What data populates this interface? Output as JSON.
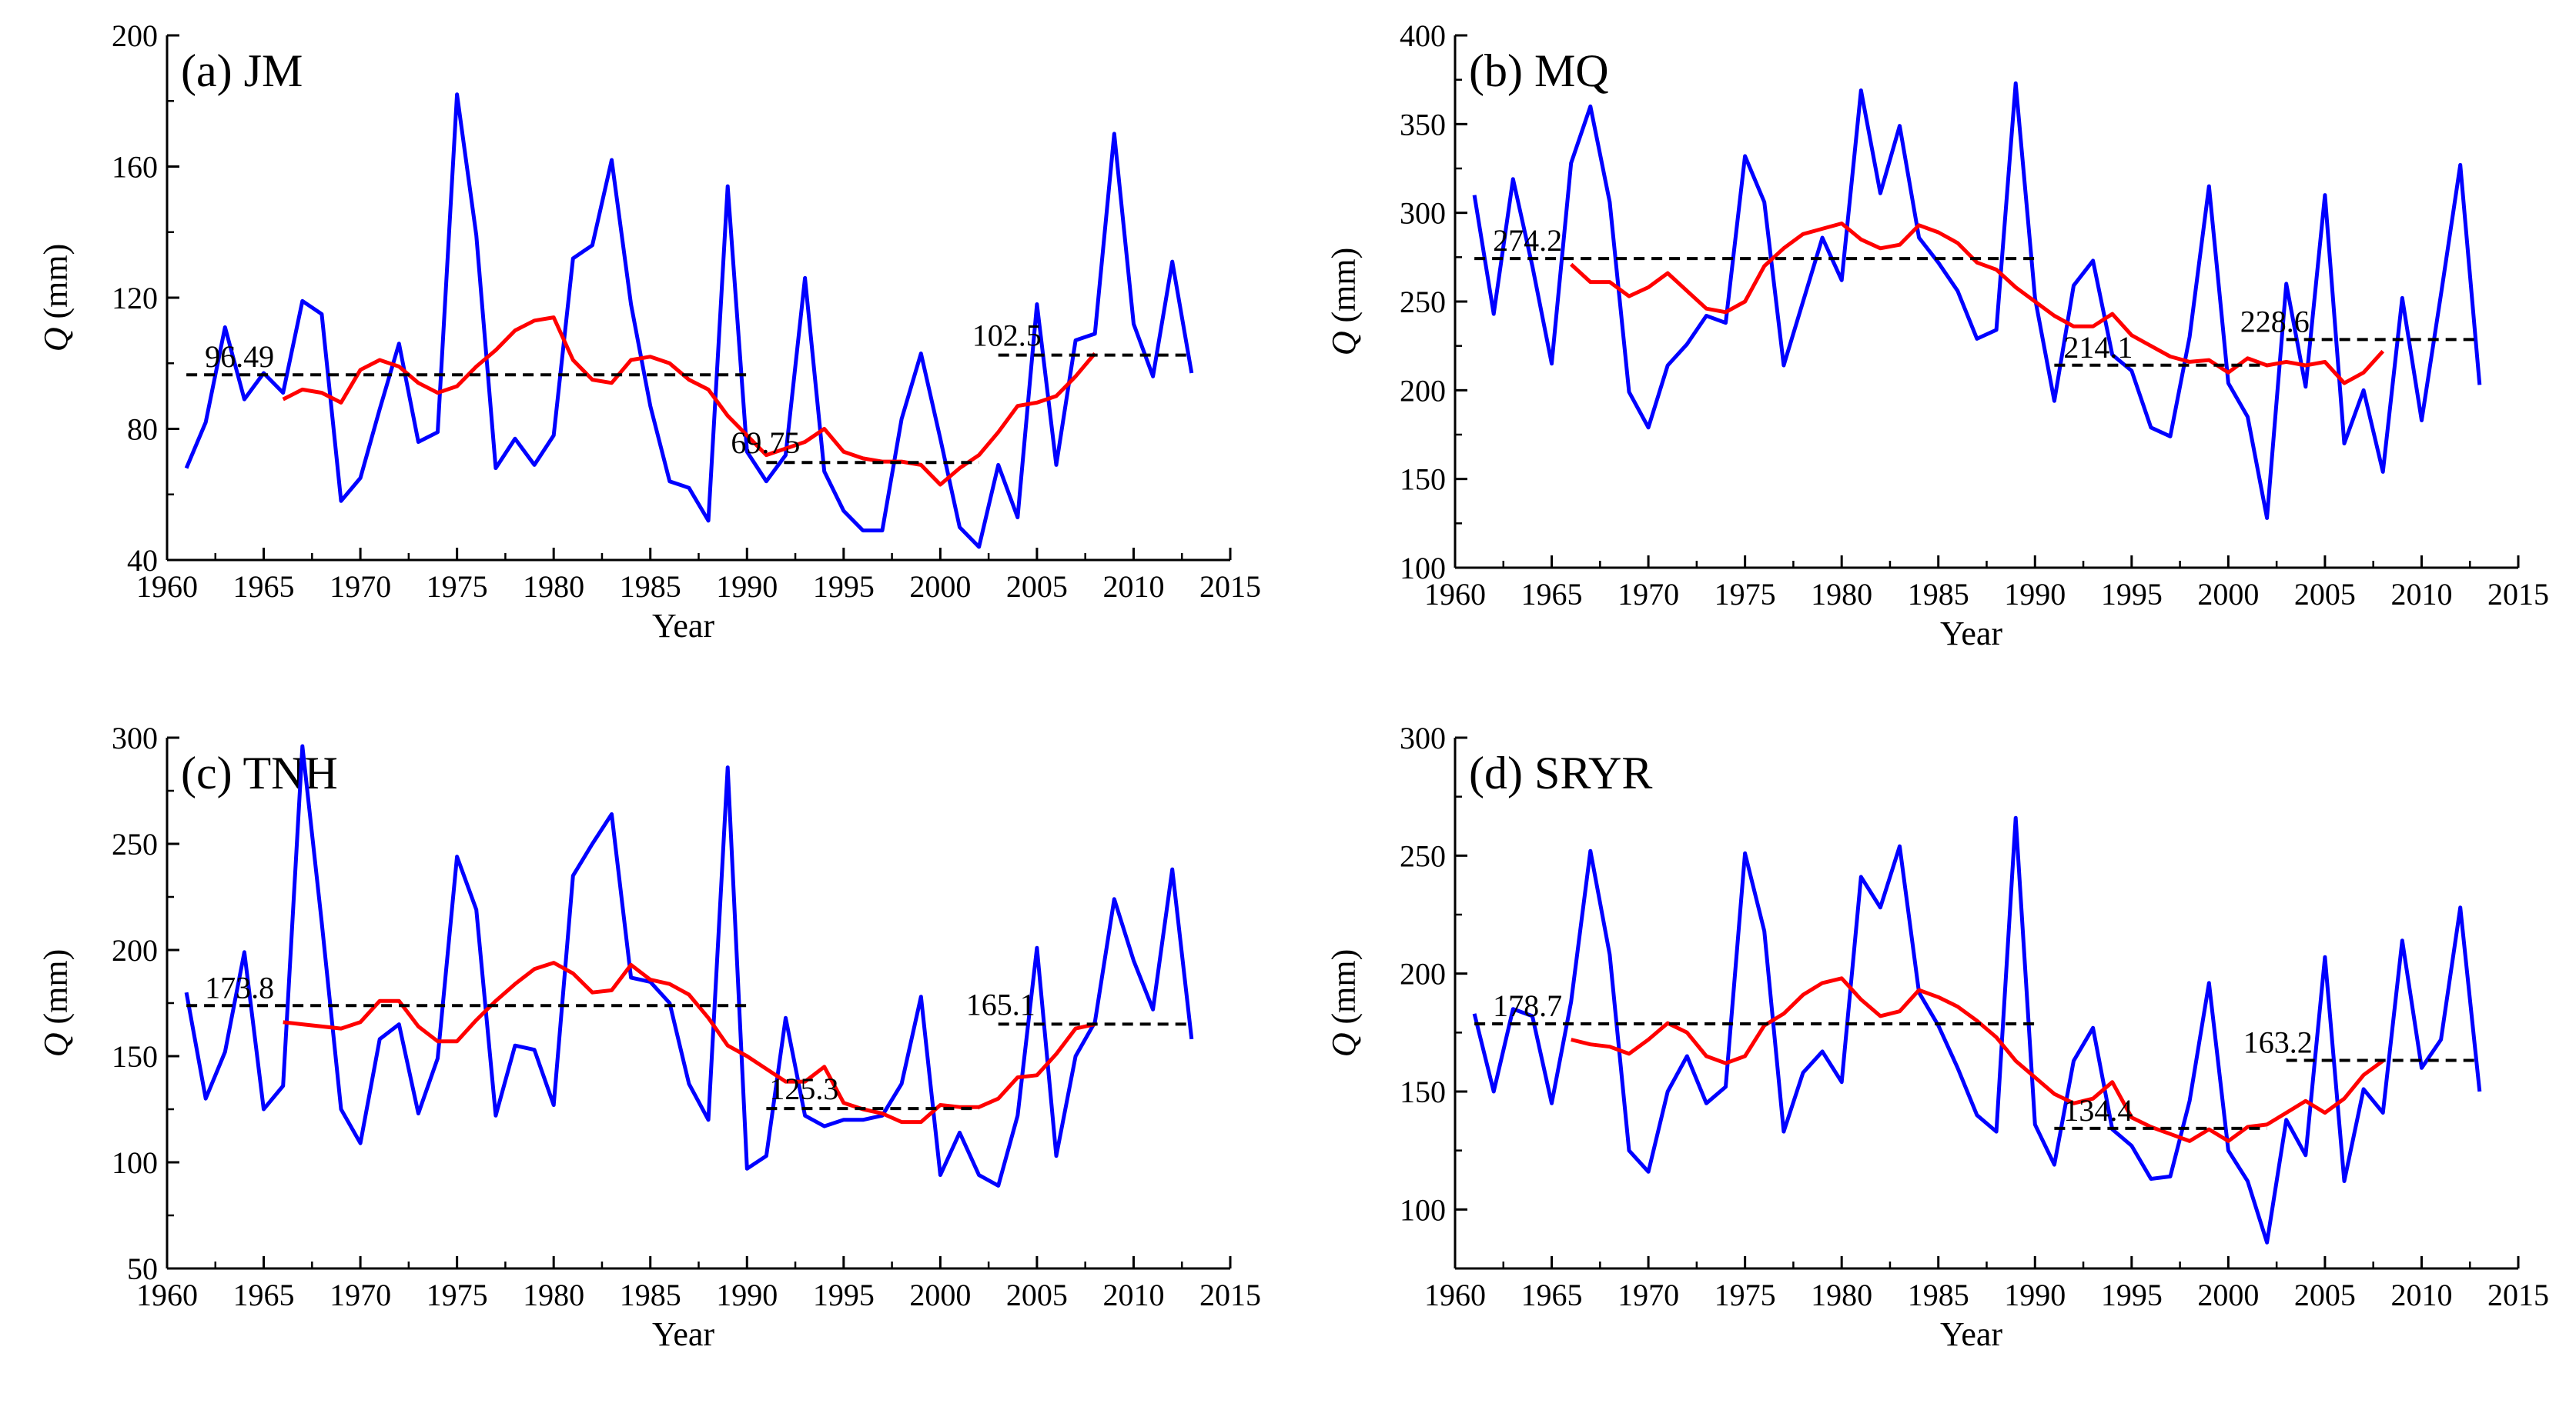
{
  "chart_data": [
    {
      "type": "line",
      "panel_label": "(a) JM",
      "xlabel": "Year",
      "ylabel_var": "Q",
      "ylabel_unit": " (mm)",
      "xlim": [
        1960,
        2015
      ],
      "ylim": [
        40,
        200
      ],
      "xticks": [
        1960,
        1965,
        1970,
        1975,
        1980,
        1985,
        1990,
        1995,
        2000,
        2005,
        2010,
        2015
      ],
      "yticks": [
        40,
        80,
        120,
        160,
        200
      ],
      "series": [
        {
          "name": "annual",
          "color": "#0000ff",
          "x": [
            1961,
            1962,
            1963,
            1964,
            1965,
            1966,
            1967,
            1968,
            1969,
            1970,
            1971,
            1972,
            1973,
            1974,
            1975,
            1976,
            1977,
            1978,
            1979,
            1980,
            1981,
            1982,
            1983,
            1984,
            1985,
            1986,
            1987,
            1988,
            1989,
            1990,
            1991,
            1992,
            1993,
            1994,
            1995,
            1996,
            1997,
            1998,
            1999,
            2000,
            2001,
            2002,
            2003,
            2004,
            2005,
            2006,
            2007,
            2008,
            2009,
            2010,
            2011,
            2012,
            2013
          ],
          "values": [
            68,
            82,
            111,
            89,
            97,
            91,
            119,
            115,
            58,
            65,
            86,
            106,
            76,
            79,
            182,
            139,
            68,
            77,
            69,
            78,
            132,
            136,
            162,
            118,
            87,
            64,
            62,
            52,
            154,
            73,
            64,
            72,
            126,
            67,
            55,
            49,
            49,
            83,
            103,
            77,
            50,
            44,
            69,
            53,
            118,
            69,
            107,
            109,
            170,
            112,
            96,
            131,
            97
          ]
        },
        {
          "name": "moving average",
          "color": "#ff0000",
          "x": [
            1966,
            1967,
            1968,
            1969,
            1970,
            1971,
            1972,
            1973,
            1974,
            1975,
            1976,
            1977,
            1978,
            1979,
            1980,
            1981,
            1982,
            1983,
            1984,
            1985,
            1986,
            1987,
            1988,
            1989,
            1990,
            1991,
            1992,
            1993,
            1994,
            1995,
            1996,
            1997,
            1998,
            1999,
            2000,
            2001,
            2002,
            2003,
            2004,
            2005,
            2006,
            2007,
            2008
          ],
          "values": [
            89,
            92,
            91,
            88,
            98,
            101,
            99,
            94,
            91,
            93,
            99,
            104,
            110,
            113,
            114,
            101,
            95,
            94,
            101,
            102,
            100,
            95,
            92,
            84,
            78,
            72,
            74,
            76,
            80,
            73,
            71,
            70,
            70,
            69,
            63,
            68,
            72,
            79,
            87,
            88,
            90,
            96,
            103
          ]
        }
      ],
      "means": [
        {
          "label": "96.49",
          "value": 96.49,
          "x_start": 1961,
          "x_end": 1990
        },
        {
          "label": "69.75",
          "value": 69.75,
          "x_start": 1991,
          "x_end": 2002
        },
        {
          "label": "102.5",
          "value": 102.5,
          "x_start": 2003,
          "x_end": 2013
        }
      ]
    },
    {
      "type": "line",
      "panel_label": "(b) MQ",
      "xlabel": "Year",
      "ylabel_var": "Q",
      "ylabel_unit": " (mm)",
      "xlim": [
        1960,
        2015
      ],
      "ylim": [
        100,
        400
      ],
      "xticks": [
        1960,
        1965,
        1970,
        1975,
        1980,
        1985,
        1990,
        1995,
        2000,
        2005,
        2010,
        2015
      ],
      "yticks": [
        100,
        150,
        200,
        250,
        300,
        350,
        400
      ],
      "series": [
        {
          "name": "annual",
          "color": "#0000ff",
          "x": [
            1961,
            1962,
            1963,
            1964,
            1965,
            1966,
            1967,
            1968,
            1969,
            1970,
            1971,
            1972,
            1973,
            1974,
            1975,
            1976,
            1977,
            1978,
            1979,
            1980,
            1981,
            1982,
            1983,
            1984,
            1985,
            1986,
            1987,
            1988,
            1989,
            1990,
            1991,
            1992,
            1993,
            1994,
            1995,
            1996,
            1997,
            1998,
            1999,
            2000,
            2001,
            2002,
            2003,
            2004,
            2005,
            2006,
            2007,
            2008,
            2009,
            2010,
            2011,
            2012,
            2013
          ],
          "values": [
            310,
            243,
            319,
            270,
            215,
            328,
            360,
            306,
            199,
            179,
            214,
            226,
            242,
            238,
            332,
            306,
            214,
            250,
            286,
            262,
            369,
            311,
            349,
            286,
            272,
            256,
            229,
            234,
            373,
            252,
            194,
            259,
            273,
            220,
            211,
            179,
            174,
            230,
            315,
            204,
            185,
            128,
            260,
            202,
            310,
            170,
            200,
            154,
            252,
            183,
            254,
            327,
            203
          ]
        },
        {
          "name": "moving average",
          "color": "#ff0000",
          "x": [
            1966,
            1967,
            1968,
            1969,
            1970,
            1971,
            1972,
            1973,
            1974,
            1975,
            1976,
            1977,
            1978,
            1979,
            1980,
            1981,
            1982,
            1983,
            1984,
            1985,
            1986,
            1987,
            1988,
            1989,
            1990,
            1991,
            1992,
            1993,
            1994,
            1995,
            1996,
            1997,
            1998,
            1999,
            2000,
            2001,
            2002,
            2003,
            2004,
            2005,
            2006,
            2007,
            2008
          ],
          "values": [
            271,
            261,
            261,
            253,
            258,
            266,
            256,
            246,
            244,
            250,
            270,
            280,
            288,
            291,
            294,
            285,
            280,
            282,
            293,
            289,
            283,
            272,
            268,
            258,
            250,
            242,
            236,
            236,
            243,
            231,
            225,
            219,
            216,
            217,
            210,
            218,
            214,
            216,
            214,
            216,
            204,
            210,
            222
          ]
        }
      ],
      "means": [
        {
          "label": "274.2",
          "value": 274.2,
          "x_start": 1961,
          "x_end": 1990
        },
        {
          "label": "214.1",
          "value": 214.1,
          "x_start": 1991,
          "x_end": 2002
        },
        {
          "label": "228.6",
          "value": 228.6,
          "x_start": 2003,
          "x_end": 2013
        }
      ]
    },
    {
      "type": "line",
      "panel_label": "(c) TNH",
      "xlabel": "Year",
      "ylabel_var": "Q",
      "ylabel_unit": " (mm)",
      "xlim": [
        1960,
        2015
      ],
      "ylim": [
        50,
        300
      ],
      "xticks": [
        1960,
        1965,
        1970,
        1975,
        1980,
        1985,
        1990,
        1995,
        2000,
        2005,
        2010,
        2015
      ],
      "yticks": [
        50,
        100,
        150,
        200,
        250,
        300
      ],
      "series": [
        {
          "name": "annual",
          "color": "#0000ff",
          "x": [
            1961,
            1962,
            1963,
            1964,
            1965,
            1966,
            1967,
            1968,
            1969,
            1970,
            1971,
            1972,
            1973,
            1974,
            1975,
            1976,
            1977,
            1978,
            1979,
            1980,
            1981,
            1982,
            1983,
            1984,
            1985,
            1986,
            1987,
            1988,
            1989,
            1990,
            1991,
            1992,
            1993,
            1994,
            1995,
            1996,
            1997,
            1998,
            1999,
            2000,
            2001,
            2002,
            2003,
            2004,
            2005,
            2006,
            2007,
            2008,
            2009,
            2010,
            2011,
            2012,
            2013
          ],
          "values": [
            180,
            130,
            152,
            199,
            125,
            136,
            296,
            213,
            125,
            109,
            158,
            165,
            123,
            149,
            244,
            219,
            122,
            155,
            153,
            127,
            235,
            250,
            264,
            187,
            185,
            175,
            137,
            120,
            286,
            97,
            103,
            168,
            122,
            117,
            120,
            120,
            122,
            137,
            178,
            94,
            114,
            94,
            89,
            122,
            201,
            103,
            150,
            166,
            224,
            195,
            172,
            238,
            158
          ]
        },
        {
          "name": "moving average",
          "color": "#ff0000",
          "x": [
            1966,
            1967,
            1968,
            1969,
            1970,
            1971,
            1972,
            1973,
            1974,
            1975,
            1976,
            1977,
            1978,
            1979,
            1980,
            1981,
            1982,
            1983,
            1984,
            1985,
            1986,
            1987,
            1988,
            1989,
            1990,
            1991,
            1992,
            1993,
            1994,
            1995,
            1996,
            1997,
            1998,
            1999,
            2000,
            2001,
            2002,
            2003,
            2004,
            2005,
            2006,
            2007,
            2008
          ],
          "values": [
            166,
            165,
            164,
            163,
            166,
            176,
            176,
            164,
            157,
            157,
            167,
            176,
            184,
            191,
            194,
            189,
            180,
            181,
            193,
            186,
            184,
            179,
            168,
            155,
            150,
            144,
            138,
            138,
            145,
            128,
            125,
            123,
            119,
            119,
            127,
            126,
            126,
            130,
            140,
            141,
            151,
            163,
            165
          ]
        }
      ],
      "means": [
        {
          "label": "173.8",
          "value": 173.8,
          "x_start": 1961,
          "x_end": 1990
        },
        {
          "label": "125.3",
          "value": 125.3,
          "x_start": 1991,
          "x_end": 2002
        },
        {
          "label": "165.1",
          "value": 165.1,
          "x_start": 2003,
          "x_end": 2013
        }
      ]
    },
    {
      "type": "line",
      "panel_label": "(d) SRYR",
      "xlabel": "Year",
      "ylabel_var": "Q",
      "ylabel_unit": " (mm)",
      "xlim": [
        1960,
        2015
      ],
      "ylim": [
        75,
        300
      ],
      "xticks": [
        1960,
        1965,
        1970,
        1975,
        1980,
        1985,
        1990,
        1995,
        2000,
        2005,
        2010,
        2015
      ],
      "yticks": [
        100,
        150,
        200,
        250,
        300
      ],
      "series": [
        {
          "name": "annual",
          "color": "#0000ff",
          "x": [
            1961,
            1962,
            1963,
            1964,
            1965,
            1966,
            1967,
            1968,
            1969,
            1970,
            1971,
            1972,
            1973,
            1974,
            1975,
            1976,
            1977,
            1978,
            1979,
            1980,
            1981,
            1982,
            1983,
            1984,
            1985,
            1986,
            1987,
            1988,
            1989,
            1990,
            1991,
            1992,
            1993,
            1994,
            1995,
            1996,
            1997,
            1998,
            1999,
            2000,
            2001,
            2002,
            2003,
            2004,
            2005,
            2006,
            2007,
            2008,
            2009,
            2010,
            2011,
            2012,
            2013
          ],
          "values": [
            183,
            150,
            185,
            182,
            145,
            188,
            252,
            208,
            125,
            116,
            150,
            165,
            145,
            152,
            251,
            218,
            133,
            158,
            167,
            154,
            241,
            228,
            254,
            192,
            178,
            160,
            140,
            133,
            266,
            136,
            119,
            163,
            177,
            134,
            127,
            113,
            114,
            146,
            196,
            125,
            112,
            86,
            138,
            123,
            207,
            112,
            151,
            141,
            214,
            160,
            172,
            228,
            150
          ]
        },
        {
          "name": "moving average",
          "color": "#ff0000",
          "x": [
            1966,
            1967,
            1968,
            1969,
            1970,
            1971,
            1972,
            1973,
            1974,
            1975,
            1976,
            1977,
            1978,
            1979,
            1980,
            1981,
            1982,
            1983,
            1984,
            1985,
            1986,
            1987,
            1988,
            1989,
            1990,
            1991,
            1992,
            1993,
            1994,
            1995,
            1996,
            1997,
            1998,
            1999,
            2000,
            2001,
            2002,
            2003,
            2004,
            2005,
            2006,
            2007,
            2008
          ],
          "values": [
            172,
            170,
            169,
            166,
            172,
            179,
            175,
            165,
            162,
            165,
            178,
            183,
            191,
            196,
            198,
            189,
            182,
            184,
            193,
            190,
            186,
            180,
            173,
            163,
            156,
            149,
            145,
            147,
            154,
            139,
            135,
            132,
            129,
            134,
            129,
            135,
            136,
            141,
            146,
            141,
            147,
            157,
            163
          ]
        }
      ],
      "means": [
        {
          "label": "178.7",
          "value": 178.7,
          "x_start": 1961,
          "x_end": 1990
        },
        {
          "label": "134.4",
          "value": 134.4,
          "x_start": 1991,
          "x_end": 2002
        },
        {
          "label": "163.2",
          "value": 163.2,
          "x_start": 2003,
          "x_end": 2013
        }
      ]
    }
  ]
}
